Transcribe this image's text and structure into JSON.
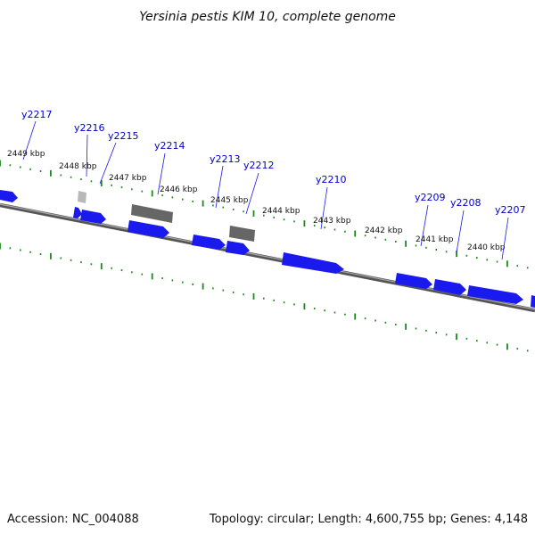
{
  "title": "Yersinia pestis KIM 10, complete genome",
  "footer": {
    "accession": "Accession: NC_004088",
    "summary": "Topology: circular; Length: 4,600,755 bp; Genes: 4,148"
  },
  "colors": {
    "gene_forward": "#1a1aee",
    "gene_reverse": "#666666",
    "gene_light": "#b8b8b8",
    "backbone": "#7a7a7a",
    "ticks": "#1a8a1a",
    "label": "#0000cc"
  },
  "genes": [
    {
      "name": "y2217"
    },
    {
      "name": "y2216"
    },
    {
      "name": "y2215"
    },
    {
      "name": "y2214"
    },
    {
      "name": "y2213"
    },
    {
      "name": "y2212"
    },
    {
      "name": "y2210"
    },
    {
      "name": "y2209"
    },
    {
      "name": "y2208"
    },
    {
      "name": "y2207"
    }
  ],
  "scale_labels": [
    "2449 kbp",
    "2448 kbp",
    "2447 kbp",
    "2446 kbp",
    "2445 kbp",
    "2444 kbp",
    "2443 kbp",
    "2442 kbp",
    "2441 kbp",
    "2440 kbp"
  ]
}
